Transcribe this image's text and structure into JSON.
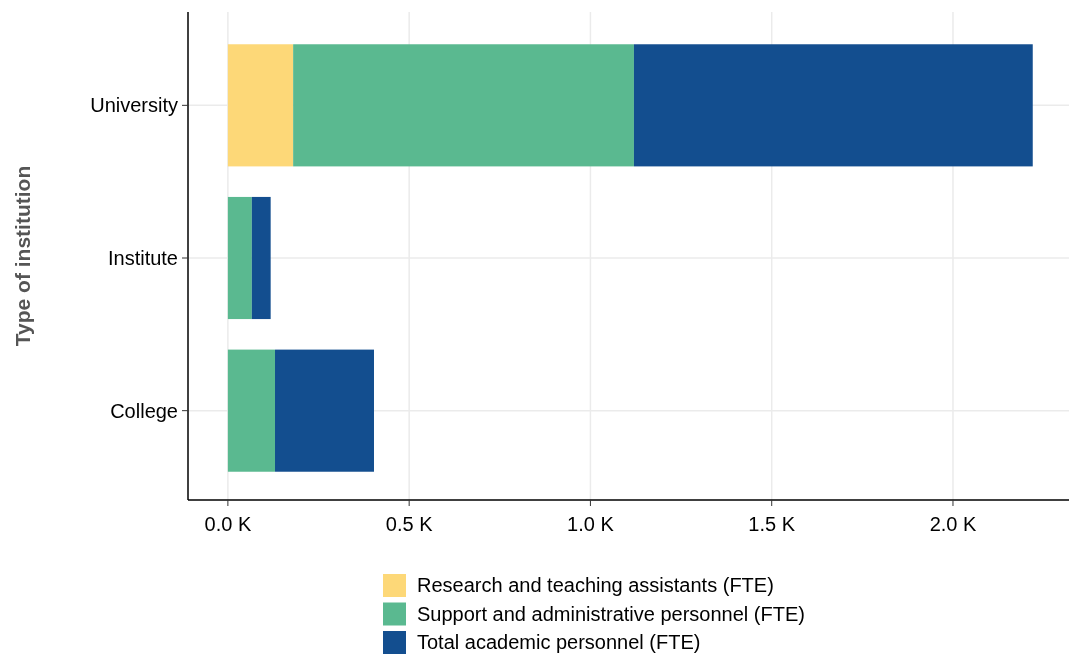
{
  "chart_data": {
    "type": "bar",
    "orientation": "horizontal",
    "stacked": true,
    "ylabel": "Type of institution",
    "categories": [
      "University",
      "Institute",
      "College"
    ],
    "series": [
      {
        "name": "Research and teaching assistants (FTE)",
        "color": "#fdd878",
        "values": [
          0.18,
          null,
          null
        ]
      },
      {
        "name": "Support and administrative personnel (FTE)",
        "color": "#5ab990",
        "values": [
          0.94,
          0.066,
          0.13
        ]
      },
      {
        "name": "Total academic personnel (FTE)",
        "color": "#134e8f",
        "values": [
          1.1,
          0.052,
          0.273
        ]
      }
    ],
    "xlim": [
      -0.11,
      2.32
    ],
    "xticks": [
      {
        "value": 0,
        "label": "0.0 K"
      },
      {
        "value": 0.5,
        "label": "0.5 K"
      },
      {
        "value": 1,
        "label": "1.0 K"
      },
      {
        "value": 1.5,
        "label": "1.5 K"
      },
      {
        "value": 2,
        "label": "2.0 K"
      }
    ],
    "grid": true,
    "legend": "bottom"
  }
}
